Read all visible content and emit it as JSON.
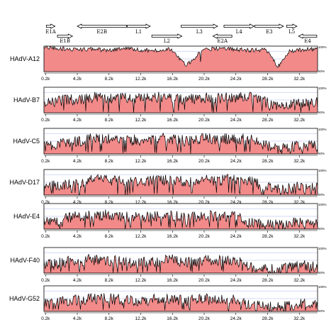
{
  "chart_data": {
    "type": "area",
    "title": "",
    "xlabel": "",
    "ylabel": "",
    "xlim": [
      0,
      34500
    ],
    "ylim": [
      50,
      100
    ],
    "y_axis_labels": [
      "100%",
      "50%"
    ],
    "x_ticks": [
      "0.2k",
      "4.2k",
      "8.2k",
      "12.2k",
      "16.2k",
      "20.2k",
      "24.2k",
      "28.2k",
      "32.2k"
    ],
    "x_tick_values": [
      200,
      4200,
      8200,
      12200,
      16200,
      20200,
      24200,
      28200,
      32200
    ],
    "colors": {
      "fill": "#f28a8a",
      "line": "#000000",
      "grid": "#aab4e6",
      "arrow": "#000000"
    },
    "genes": [
      {
        "name": "E1A",
        "start": 300,
        "end": 1400,
        "strand": "+",
        "row": "top"
      },
      {
        "name": "E1B",
        "start": 1700,
        "end": 3600,
        "strand": "+",
        "row": "bottom"
      },
      {
        "name": "E2B",
        "start": 4200,
        "end": 10400,
        "strand": "-",
        "row": "top"
      },
      {
        "name": "L1",
        "start": 10500,
        "end": 13400,
        "strand": "+",
        "row": "top"
      },
      {
        "name": "L2",
        "start": 13600,
        "end": 17400,
        "strand": "+",
        "row": "bottom"
      },
      {
        "name": "L3",
        "start": 17300,
        "end": 21900,
        "strand": "+",
        "row": "top"
      },
      {
        "name": "E2A",
        "start": 21300,
        "end": 23700,
        "strand": "-",
        "row": "bottom"
      },
      {
        "name": "L4",
        "start": 22700,
        "end": 26500,
        "strand": "+",
        "row": "top"
      },
      {
        "name": "E3",
        "start": 26600,
        "end": 30200,
        "strand": "+",
        "row": "top"
      },
      {
        "name": "L5",
        "start": 30600,
        "end": 31900,
        "strand": "+",
        "row": "top"
      },
      {
        "name": "E4",
        "start": 32100,
        "end": 34400,
        "strand": "-",
        "row": "bottom"
      }
    ],
    "series": [
      {
        "name": "HAdV-A12",
        "identity_percent": [
          {
            "x": 200,
            "y": 97
          },
          {
            "x": 2000,
            "y": 95
          },
          {
            "x": 4000,
            "y": 93
          },
          {
            "x": 6000,
            "y": 94
          },
          {
            "x": 8000,
            "y": 92
          },
          {
            "x": 10000,
            "y": 95
          },
          {
            "x": 12000,
            "y": 93
          },
          {
            "x": 14000,
            "y": 91
          },
          {
            "x": 16000,
            "y": 94
          },
          {
            "x": 18000,
            "y": 62
          },
          {
            "x": 20000,
            "y": 93
          },
          {
            "x": 22000,
            "y": 95
          },
          {
            "x": 24000,
            "y": 94
          },
          {
            "x": 26000,
            "y": 92
          },
          {
            "x": 28000,
            "y": 93
          },
          {
            "x": 29500,
            "y": 60
          },
          {
            "x": 31000,
            "y": 90
          },
          {
            "x": 32600,
            "y": 93
          },
          {
            "x": 34400,
            "y": 94
          }
        ]
      },
      {
        "name": "HAdV-B7",
        "identity_percent": [
          {
            "x": 200,
            "y": 68
          },
          {
            "x": 2000,
            "y": 74
          },
          {
            "x": 4000,
            "y": 76
          },
          {
            "x": 6000,
            "y": 80
          },
          {
            "x": 8000,
            "y": 79
          },
          {
            "x": 10000,
            "y": 78
          },
          {
            "x": 12000,
            "y": 78
          },
          {
            "x": 14000,
            "y": 80
          },
          {
            "x": 16000,
            "y": 80
          },
          {
            "x": 18000,
            "y": 76
          },
          {
            "x": 20000,
            "y": 80
          },
          {
            "x": 22000,
            "y": 78
          },
          {
            "x": 24000,
            "y": 80
          },
          {
            "x": 26000,
            "y": 80
          },
          {
            "x": 28000,
            "y": 70
          },
          {
            "x": 30000,
            "y": 62
          },
          {
            "x": 32000,
            "y": 70
          },
          {
            "x": 34400,
            "y": 72
          }
        ]
      },
      {
        "name": "HAdV-C5",
        "identity_percent": [
          {
            "x": 200,
            "y": 66
          },
          {
            "x": 2000,
            "y": 70
          },
          {
            "x": 4000,
            "y": 74
          },
          {
            "x": 6000,
            "y": 80
          },
          {
            "x": 8000,
            "y": 80
          },
          {
            "x": 10000,
            "y": 77
          },
          {
            "x": 12000,
            "y": 77
          },
          {
            "x": 14000,
            "y": 79
          },
          {
            "x": 16000,
            "y": 80
          },
          {
            "x": 18000,
            "y": 75
          },
          {
            "x": 20000,
            "y": 80
          },
          {
            "x": 22000,
            "y": 79
          },
          {
            "x": 24000,
            "y": 80
          },
          {
            "x": 26000,
            "y": 79
          },
          {
            "x": 28000,
            "y": 66
          },
          {
            "x": 30000,
            "y": 60
          },
          {
            "x": 32000,
            "y": 66
          },
          {
            "x": 34400,
            "y": 66
          }
        ]
      },
      {
        "name": "HAdV-D17",
        "identity_percent": [
          {
            "x": 200,
            "y": 66
          },
          {
            "x": 2000,
            "y": 70
          },
          {
            "x": 4000,
            "y": 74
          },
          {
            "x": 6000,
            "y": 80
          },
          {
            "x": 8000,
            "y": 80
          },
          {
            "x": 10000,
            "y": 77
          },
          {
            "x": 12000,
            "y": 77
          },
          {
            "x": 14000,
            "y": 79
          },
          {
            "x": 16000,
            "y": 80
          },
          {
            "x": 18000,
            "y": 75
          },
          {
            "x": 20000,
            "y": 80
          },
          {
            "x": 22000,
            "y": 79
          },
          {
            "x": 24000,
            "y": 80
          },
          {
            "x": 26000,
            "y": 79
          },
          {
            "x": 28000,
            "y": 66
          },
          {
            "x": 30000,
            "y": 60
          },
          {
            "x": 32000,
            "y": 66
          },
          {
            "x": 34400,
            "y": 66
          }
        ]
      },
      {
        "name": "HAdV-E4",
        "identity_percent": [
          {
            "x": 200,
            "y": 64
          },
          {
            "x": 2000,
            "y": 68
          },
          {
            "x": 4000,
            "y": 74
          },
          {
            "x": 6000,
            "y": 78
          },
          {
            "x": 8000,
            "y": 78
          },
          {
            "x": 10000,
            "y": 74
          },
          {
            "x": 12000,
            "y": 72
          },
          {
            "x": 14000,
            "y": 74
          },
          {
            "x": 16000,
            "y": 77
          },
          {
            "x": 18000,
            "y": 72
          },
          {
            "x": 20000,
            "y": 77
          },
          {
            "x": 22000,
            "y": 74
          },
          {
            "x": 24000,
            "y": 76
          },
          {
            "x": 26000,
            "y": 64
          },
          {
            "x": 28000,
            "y": 58
          },
          {
            "x": 30000,
            "y": 58
          },
          {
            "x": 32000,
            "y": 64
          },
          {
            "x": 34400,
            "y": 62
          }
        ]
      },
      {
        "name": "HAdV-F40",
        "identity_percent": [
          {
            "x": 200,
            "y": 64
          },
          {
            "x": 2000,
            "y": 70
          },
          {
            "x": 4000,
            "y": 74
          },
          {
            "x": 6000,
            "y": 76
          },
          {
            "x": 8000,
            "y": 74
          },
          {
            "x": 10000,
            "y": 72
          },
          {
            "x": 12000,
            "y": 70
          },
          {
            "x": 14000,
            "y": 72
          },
          {
            "x": 16000,
            "y": 76
          },
          {
            "x": 18000,
            "y": 70
          },
          {
            "x": 20000,
            "y": 75
          },
          {
            "x": 22000,
            "y": 74
          },
          {
            "x": 24000,
            "y": 76
          },
          {
            "x": 26000,
            "y": 62
          },
          {
            "x": 28000,
            "y": 58
          },
          {
            "x": 30000,
            "y": 58
          },
          {
            "x": 32000,
            "y": 64
          },
          {
            "x": 34400,
            "y": 64
          }
        ]
      },
      {
        "name": "HAdV-G52",
        "identity_percent": [
          {
            "x": 200,
            "y": 64
          },
          {
            "x": 2000,
            "y": 68
          },
          {
            "x": 4000,
            "y": 72
          },
          {
            "x": 6000,
            "y": 75
          },
          {
            "x": 8000,
            "y": 75
          },
          {
            "x": 10000,
            "y": 72
          },
          {
            "x": 12000,
            "y": 70
          },
          {
            "x": 14000,
            "y": 73
          },
          {
            "x": 16000,
            "y": 76
          },
          {
            "x": 18000,
            "y": 70
          },
          {
            "x": 20000,
            "y": 74
          },
          {
            "x": 22000,
            "y": 73
          },
          {
            "x": 24000,
            "y": 74
          },
          {
            "x": 26000,
            "y": 62
          },
          {
            "x": 28000,
            "y": 58
          },
          {
            "x": 30000,
            "y": 58
          },
          {
            "x": 32000,
            "y": 64
          },
          {
            "x": 34400,
            "y": 64
          }
        ]
      }
    ]
  }
}
